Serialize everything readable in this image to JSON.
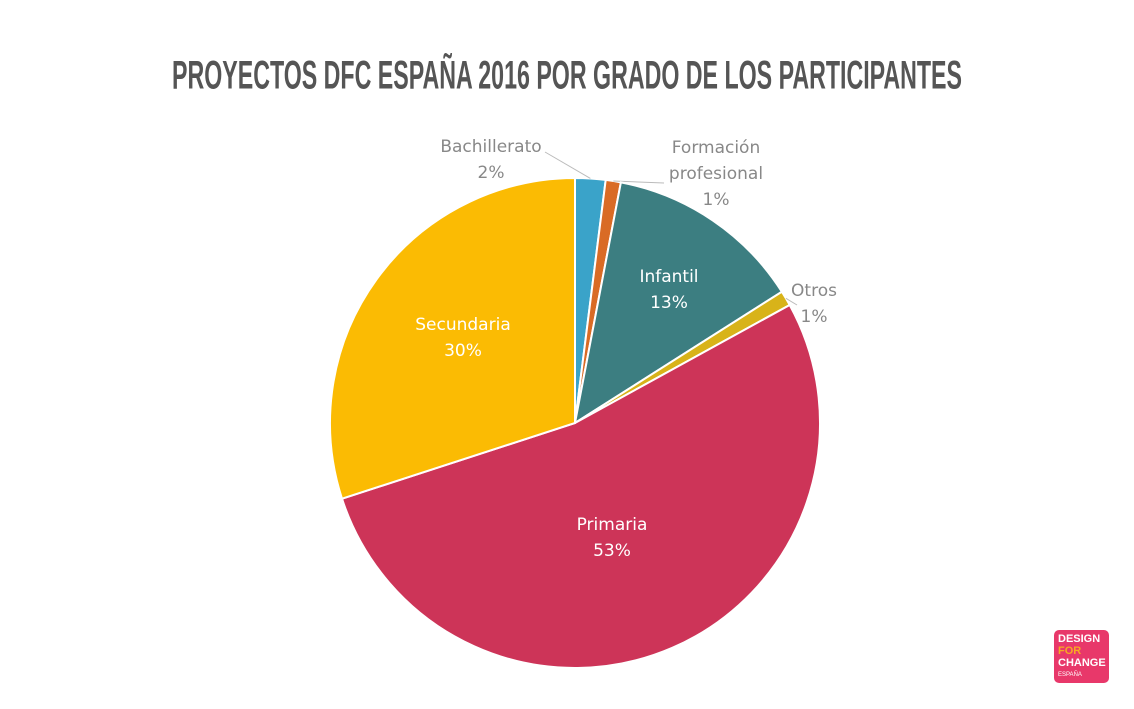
{
  "chart_data": {
    "type": "pie",
    "title": "PROYECTOS DFC ESPAÑA 2016 POR GRADO DE LOS PARTICIPANTES",
    "categories": [
      "Bachillerato",
      "Formación profesional",
      "Infantil",
      "Otros",
      "Primaria",
      "Secundaria"
    ],
    "values": [
      2,
      1,
      13,
      1,
      53,
      30
    ],
    "value_labels": [
      "2%",
      "1%",
      "13%",
      "1%",
      "53%",
      "30%"
    ],
    "colors": [
      "#3aa3c9",
      "#d96b25",
      "#3c7e81",
      "#d8b319",
      "#cd3458",
      "#fbbb03"
    ]
  },
  "logo": {
    "lines": [
      "DESIGN",
      "FOR",
      "CHANGE",
      "ESPAÑA"
    ]
  }
}
